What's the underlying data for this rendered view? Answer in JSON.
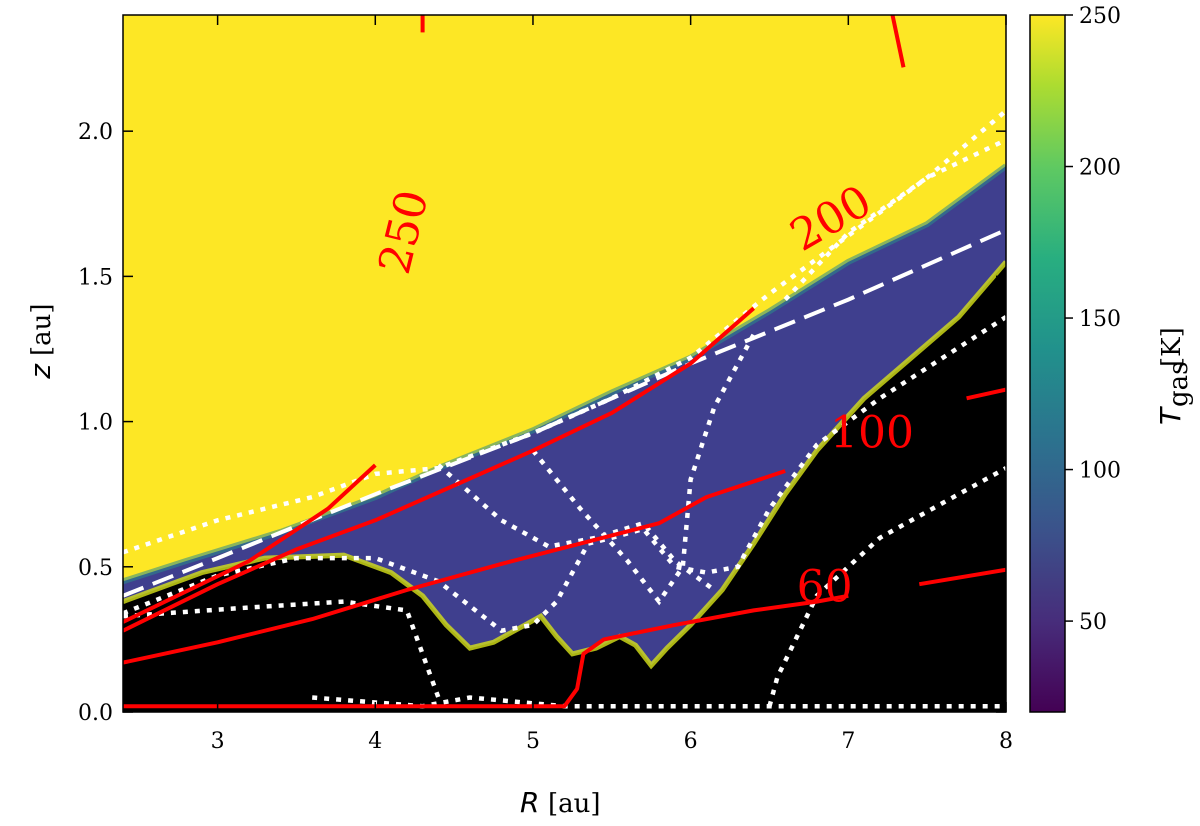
{
  "chart_data": {
    "type": "heatmap",
    "xlabel": {
      "symbol": "R",
      "unit": "[au]"
    },
    "ylabel": {
      "symbol": "z",
      "unit": "[au]"
    },
    "xlim": [
      2.4,
      8.0
    ],
    "ylim": [
      0.0,
      2.4
    ],
    "x_ticks": [
      "3",
      "4",
      "5",
      "6",
      "7",
      "8"
    ],
    "y_ticks": [
      "0.0",
      "0.5",
      "1.0",
      "1.5",
      "2.0"
    ],
    "colorbar": {
      "label": {
        "symbol": "T",
        "subscript": "gas",
        "unit": "[K]"
      },
      "range": [
        20,
        250
      ],
      "ticks": [
        "50",
        "100",
        "150",
        "200",
        "250"
      ],
      "colormap": "viridis"
    },
    "colors": {
      "hot_region": "#fde725",
      "cold_region": "#000000",
      "contour": "#ff0000",
      "boundary_lines": "#ffffff"
    },
    "temperature_contours": [
      {
        "label": "250",
        "points": [
          [
            4.3,
            2.34
          ],
          [
            4.3,
            2.4
          ]
        ]
      },
      {
        "label": "250",
        "points": [
          [
            7.35,
            2.22
          ],
          [
            7.28,
            2.4
          ]
        ]
      },
      {
        "label": "200",
        "points": [
          [
            2.4,
            0.31
          ],
          [
            3.2,
            0.52
          ],
          [
            3.7,
            0.7
          ],
          [
            4.0,
            0.85
          ]
        ]
      },
      {
        "label": "",
        "points": [
          [
            2.4,
            0.28
          ],
          [
            3.0,
            0.44
          ],
          [
            3.5,
            0.56
          ],
          [
            4.0,
            0.66
          ],
          [
            4.5,
            0.78
          ],
          [
            5.0,
            0.9
          ],
          [
            5.5,
            1.03
          ],
          [
            6.0,
            1.2
          ],
          [
            6.4,
            1.39
          ]
        ]
      },
      {
        "label": "100",
        "points": [
          [
            2.4,
            0.17
          ],
          [
            3.0,
            0.24
          ],
          [
            3.6,
            0.32
          ],
          [
            4.2,
            0.42
          ],
          [
            4.8,
            0.51
          ],
          [
            5.3,
            0.58
          ],
          [
            5.8,
            0.65
          ],
          [
            6.1,
            0.74
          ],
          [
            6.6,
            0.83
          ]
        ]
      },
      {
        "label": "100",
        "points": [
          [
            7.75,
            1.08
          ],
          [
            8.0,
            1.11
          ]
        ]
      },
      {
        "label": "60",
        "points": [
          [
            2.4,
            0.02
          ],
          [
            5.2,
            0.02
          ],
          [
            5.28,
            0.08
          ],
          [
            5.32,
            0.2
          ],
          [
            5.45,
            0.25
          ],
          [
            5.9,
            0.3
          ],
          [
            6.4,
            0.35
          ],
          [
            6.8,
            0.38
          ],
          [
            7.0,
            0.4
          ]
        ]
      },
      {
        "label": "60",
        "points": [
          [
            7.45,
            0.44
          ],
          [
            8.0,
            0.49
          ]
        ]
      }
    ],
    "contour_labels": [
      {
        "text": "250",
        "x": 4.2,
        "y": 1.65,
        "angle": -76
      },
      {
        "text": "200",
        "x": 6.9,
        "y": 1.69,
        "angle": -30
      },
      {
        "text": "100",
        "x": 7.15,
        "y": 0.95,
        "angle": 0
      },
      {
        "text": "60",
        "x": 6.85,
        "y": 0.42,
        "angle": 0
      }
    ],
    "regions": {
      "hot_boundary": [
        [
          2.4,
          0.45
        ],
        [
          2.8,
          0.52
        ],
        [
          3.4,
          0.62
        ],
        [
          4.0,
          0.74
        ],
        [
          4.4,
          0.84
        ],
        [
          5.0,
          0.97
        ],
        [
          5.5,
          1.1
        ],
        [
          6.0,
          1.22
        ],
        [
          6.5,
          1.38
        ],
        [
          7.0,
          1.55
        ],
        [
          7.5,
          1.68
        ],
        [
          8.0,
          1.88
        ]
      ],
      "cold_boundary": [
        [
          2.4,
          0.38
        ],
        [
          2.9,
          0.48
        ],
        [
          3.3,
          0.53
        ],
        [
          3.8,
          0.54
        ],
        [
          4.1,
          0.48
        ],
        [
          4.3,
          0.4
        ],
        [
          4.45,
          0.3
        ],
        [
          4.6,
          0.22
        ],
        [
          4.75,
          0.24
        ],
        [
          4.95,
          0.3
        ],
        [
          5.05,
          0.33
        ],
        [
          5.15,
          0.26
        ],
        [
          5.25,
          0.2
        ],
        [
          5.4,
          0.22
        ],
        [
          5.55,
          0.26
        ],
        [
          5.65,
          0.23
        ],
        [
          5.75,
          0.16
        ],
        [
          5.85,
          0.22
        ],
        [
          6.0,
          0.3
        ],
        [
          6.2,
          0.42
        ],
        [
          6.4,
          0.58
        ],
        [
          6.6,
          0.75
        ],
        [
          6.8,
          0.9
        ],
        [
          7.1,
          1.08
        ],
        [
          7.4,
          1.22
        ],
        [
          7.7,
          1.36
        ],
        [
          8.0,
          1.55
        ]
      ]
    },
    "white_dashed_line": [
      [
        2.4,
        0.4
      ],
      [
        3.0,
        0.53
      ],
      [
        4.0,
        0.75
      ],
      [
        5.0,
        0.96
      ],
      [
        6.0,
        1.2
      ],
      [
        7.0,
        1.42
      ],
      [
        8.0,
        1.66
      ]
    ],
    "white_dotted_lines": [
      [
        [
          2.4,
          0.55
        ],
        [
          3.0,
          0.66
        ],
        [
          3.6,
          0.74
        ],
        [
          4.0,
          0.82
        ],
        [
          4.4,
          0.84
        ],
        [
          5.0,
          0.96
        ],
        [
          5.5,
          1.08
        ],
        [
          6.0,
          1.22
        ],
        [
          6.5,
          1.44
        ],
        [
          7.0,
          1.64
        ],
        [
          7.5,
          1.84
        ],
        [
          8.0,
          2.07
        ]
      ],
      [
        [
          6.6,
          1.42
        ],
        [
          7.0,
          1.65
        ],
        [
          7.5,
          1.84
        ],
        [
          8.0,
          1.97
        ]
      ],
      [
        [
          2.4,
          0.34
        ],
        [
          3.0,
          0.47
        ],
        [
          3.5,
          0.53
        ],
        [
          4.0,
          0.53
        ],
        [
          4.4,
          0.45
        ],
        [
          4.8,
          0.28
        ],
        [
          5.0,
          0.3
        ],
        [
          5.15,
          0.38
        ],
        [
          5.35,
          0.58
        ],
        [
          5.5,
          0.6
        ],
        [
          5.7,
          0.63
        ],
        [
          5.9,
          0.5
        ],
        [
          6.1,
          0.48
        ],
        [
          6.3,
          0.5
        ],
        [
          6.5,
          0.7
        ],
        [
          6.8,
          0.92
        ],
        [
          7.2,
          1.08
        ],
        [
          7.6,
          1.22
        ],
        [
          8.0,
          1.36
        ]
      ],
      [
        [
          2.4,
          0.33
        ],
        [
          3.2,
          0.36
        ],
        [
          3.8,
          0.38
        ],
        [
          4.2,
          0.35
        ],
        [
          4.4,
          0.05
        ]
      ],
      [
        [
          6.5,
          0.02
        ],
        [
          6.55,
          0.12
        ],
        [
          6.8,
          0.4
        ],
        [
          7.2,
          0.6
        ],
        [
          7.6,
          0.72
        ],
        [
          8.0,
          0.84
        ]
      ],
      [
        [
          5.0,
          0.9
        ],
        [
          5.3,
          0.7
        ],
        [
          5.6,
          0.52
        ],
        [
          5.8,
          0.38
        ],
        [
          5.95,
          0.5
        ],
        [
          6.0,
          0.8
        ],
        [
          6.15,
          1.05
        ],
        [
          6.4,
          1.3
        ]
      ],
      [
        [
          4.4,
          0.85
        ],
        [
          4.8,
          0.66
        ],
        [
          5.1,
          0.57
        ],
        [
          5.4,
          0.6
        ],
        [
          5.7,
          0.65
        ],
        [
          5.9,
          0.52
        ],
        [
          6.15,
          0.42
        ]
      ],
      [
        [
          3.6,
          0.05
        ],
        [
          4.3,
          0.02
        ],
        [
          4.6,
          0.05
        ],
        [
          5.2,
          0.02
        ],
        [
          6.6,
          0.02
        ],
        [
          8.0,
          0.02
        ]
      ]
    ],
    "grid": false
  }
}
